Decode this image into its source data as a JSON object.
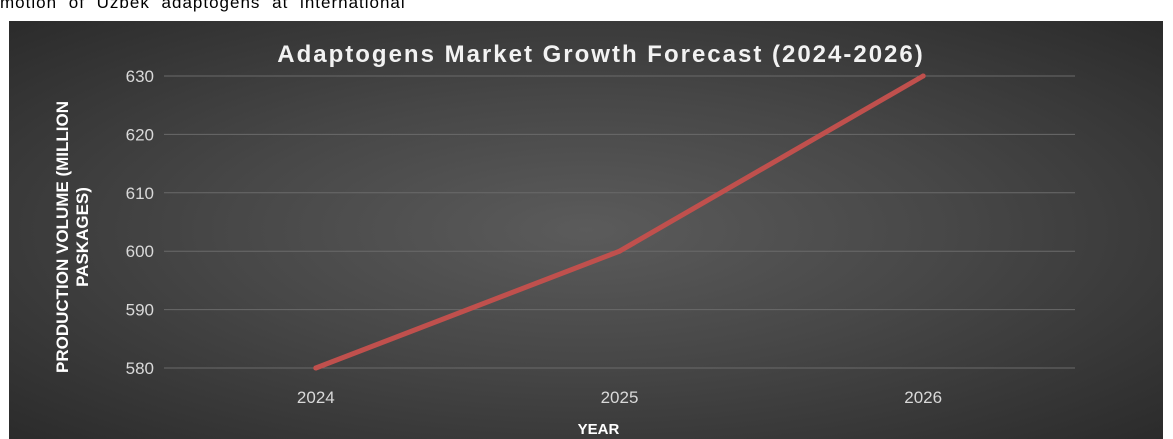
{
  "document": {
    "text_above": "motion of Uzbek adaptogens at international"
  },
  "chart_data": {
    "type": "line",
    "title": "Adaptogens Market Growth Forecast (2024-2026)",
    "xlabel": "YEAR",
    "ylabel": "PRODUCTION VOLUME (MILLION PASKAGES)",
    "categories": [
      "2024",
      "2025",
      "2026"
    ],
    "series": [
      {
        "values": [
          580,
          600,
          630
        ],
        "color": "#c0504d"
      }
    ],
    "ylim": [
      580,
      630
    ],
    "yticks": [
      580,
      590,
      600,
      610,
      620,
      630
    ],
    "grid": true,
    "legend": "none",
    "background": "#474747",
    "gridline_color": "#6a6a6a",
    "text_color": "#d9d9d9"
  }
}
